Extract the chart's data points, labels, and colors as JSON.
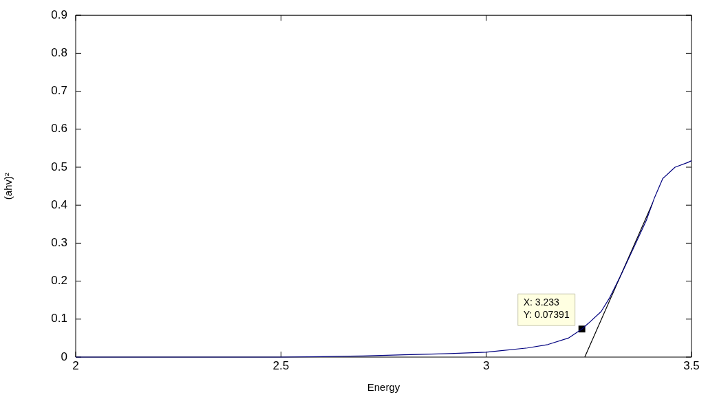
{
  "chart_data": {
    "type": "line",
    "xlabel": "Energy",
    "ylabel": "(ahv)²",
    "xlim": [
      2,
      3.5
    ],
    "xticks": [
      2,
      2.5,
      3,
      3.5
    ],
    "ylim": [
      0,
      0.9
    ],
    "yticks": [
      0,
      0.1,
      0.2,
      0.3,
      0.4,
      0.5,
      0.6,
      0.7,
      0.8,
      0.9
    ],
    "grid": false,
    "legend": false,
    "marker": "none",
    "line_style": "solid",
    "series": [
      {
        "color": "#00007f",
        "x": [
          2,
          2.5,
          2.6,
          2.7,
          2.8,
          2.9,
          3.0,
          3.1,
          3.15,
          3.2,
          3.233,
          3.25,
          3.28,
          3.3,
          3.33,
          3.36,
          3.39,
          3.41,
          3.43,
          3.46,
          3.49,
          3.5
        ],
        "values": [
          0,
          0,
          0.001,
          0.003,
          0.006,
          0.009,
          0.013,
          0.024,
          0.033,
          0.05,
          0.07391,
          0.09,
          0.12,
          0.155,
          0.22,
          0.29,
          0.36,
          0.42,
          0.47,
          0.5,
          0.512,
          0.517
        ]
      },
      {
        "type": "line",
        "color": "#000000",
        "x": [
          3.24,
          3.405
        ],
        "values": [
          0,
          0.405
        ]
      },
      {
        "type": "scatter",
        "color": "#000000",
        "marker": "square",
        "x": [
          3.233
        ],
        "values": [
          0.07391
        ]
      }
    ],
    "annotations": [
      {
        "text": "X: 3.233\nY: 0.07391",
        "x": 3.233,
        "y": 0.07391
      }
    ]
  }
}
